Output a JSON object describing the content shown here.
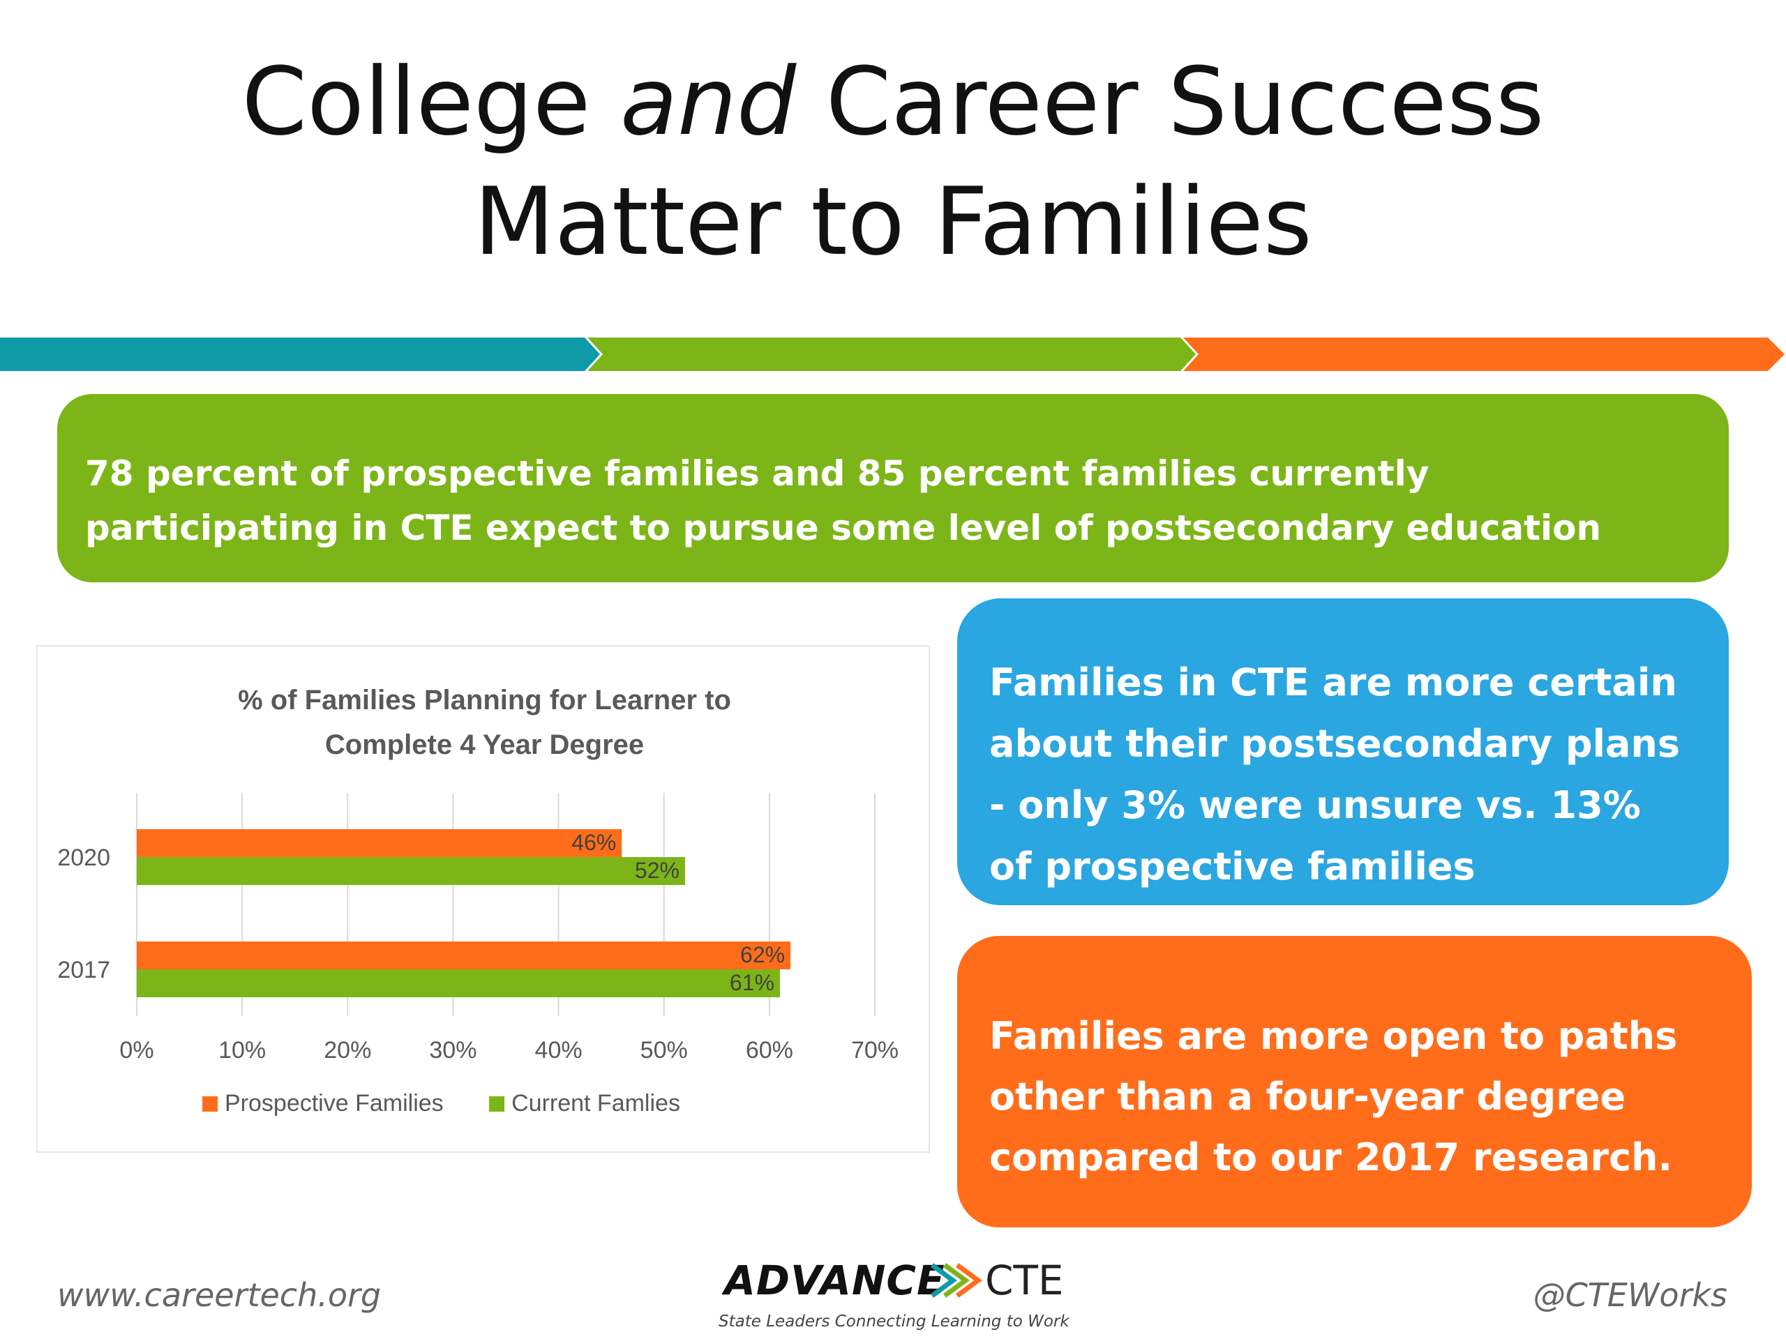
{
  "slide": {
    "title_part1": "College ",
    "title_emphasis": "and",
    "title_part2": " Career Success",
    "title_line2": "Matter to Families"
  },
  "callouts": {
    "green": "78 percent of prospective families and 85 percent families currently participating in CTE expect to pursue some level of postsecondary education",
    "blue": "Families in CTE are more certain about their postsecondary plans - only 3% were unsure vs. 13% of prospective families",
    "orange": "Families are more open to paths other than a four-year degree  compared to our 2017 research."
  },
  "footer": {
    "website": "www.careertech.org",
    "handle": "@CTEWorks",
    "logo_word1": "ADVANCE",
    "logo_word2": "CTE",
    "logo_tagline": "State Leaders Connecting Learning to Work"
  },
  "colors": {
    "teal": "#0e9aa7",
    "green": "#7cb518",
    "orange": "#ff6d1b",
    "blue": "#2aa6e0"
  },
  "chart_data": {
    "type": "bar",
    "orientation": "horizontal",
    "title_line1": "% of Families Planning for Learner  to",
    "title_line2": "Complete 4 Year Degree",
    "categories": [
      "2020",
      "2017"
    ],
    "series": [
      {
        "name": "Prospective Families",
        "values": [
          46,
          62
        ],
        "labels": [
          "46%",
          "62%"
        ],
        "color": "#ff6d1b"
      },
      {
        "name": "Current Famlies",
        "values": [
          52,
          61
        ],
        "labels": [
          "52%",
          "61%"
        ],
        "color": "#7cb518"
      }
    ],
    "xlim": [
      0,
      70
    ],
    "xticks": [
      0,
      10,
      20,
      30,
      40,
      50,
      60,
      70
    ],
    "xtick_labels": [
      "0%",
      "10%",
      "20%",
      "30%",
      "40%",
      "50%",
      "60%",
      "70%"
    ],
    "grid": true,
    "legend_position": "bottom"
  }
}
